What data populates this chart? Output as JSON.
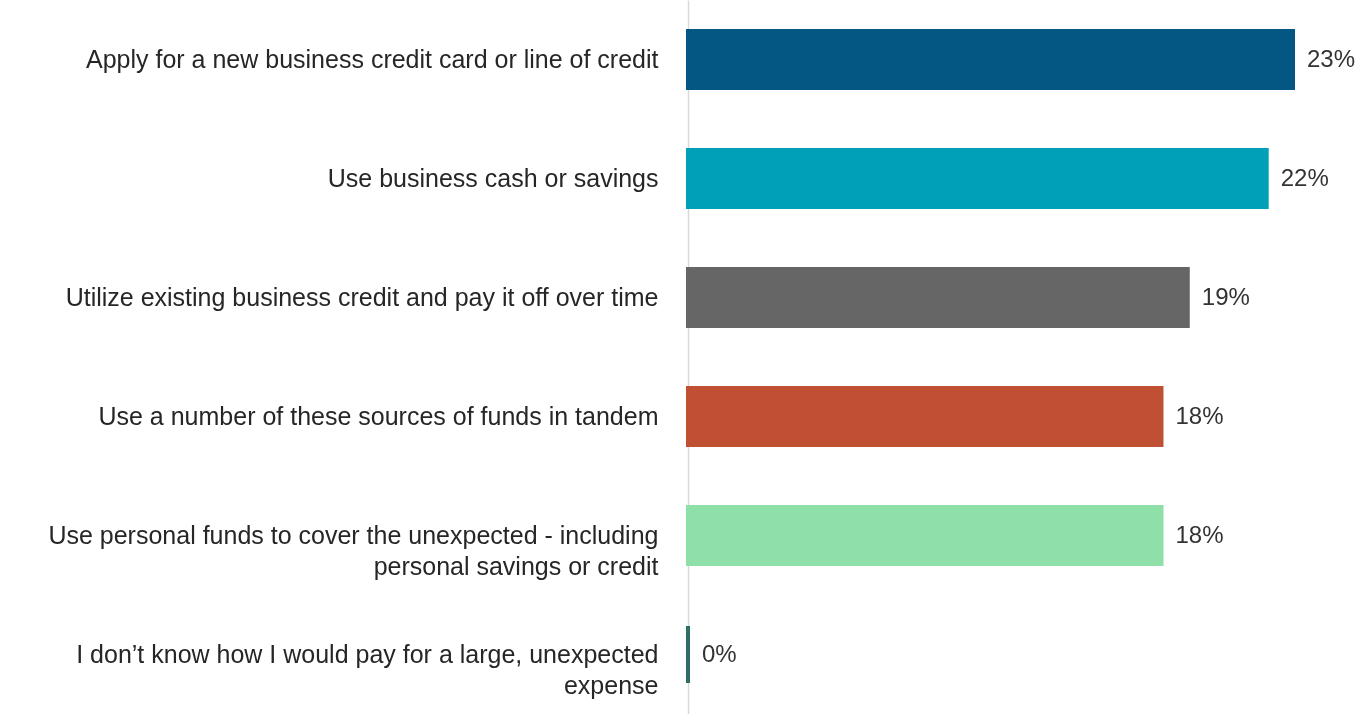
{
  "chart_data": {
    "type": "bar",
    "orientation": "horizontal",
    "categories": [
      "Apply for a new business credit card or line of credit",
      "Use business cash or savings",
      "Utilize existing business credit and pay it off over time",
      "Use a number of these sources of funds in tandem",
      "Use personal funds to cover the unexpected - including personal savings or credit",
      "I don’t know how I would pay for a large, unexpected expense"
    ],
    "values": [
      23,
      22,
      19,
      18,
      18,
      0
    ],
    "value_labels": [
      "23%",
      "22%",
      "19%",
      "18%",
      "18%",
      "0%"
    ],
    "colors": [
      "#045783",
      "#00a0b8",
      "#666666",
      "#c05033",
      "#8fdfa9",
      "#2f6e63"
    ]
  }
}
